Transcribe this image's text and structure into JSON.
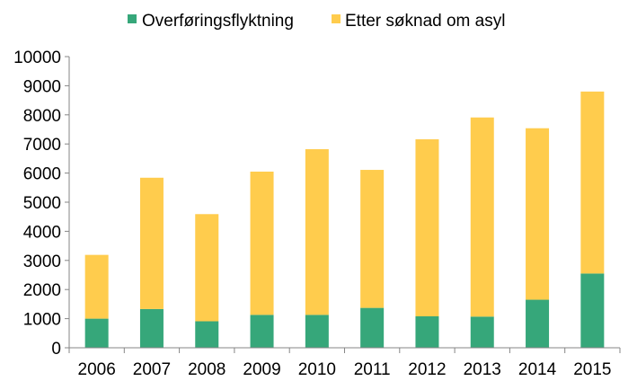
{
  "chart_data": {
    "type": "bar",
    "stacked": true,
    "categories": [
      "2006",
      "2007",
      "2008",
      "2009",
      "2010",
      "2011",
      "2012",
      "2013",
      "2014",
      "2015"
    ],
    "series": [
      {
        "name": "Overføringsflyktning",
        "color": "#36A77A",
        "values": [
          1000,
          1330,
          910,
          1130,
          1130,
          1370,
          1080,
          1070,
          1650,
          2550
        ]
      },
      {
        "name": "Etter søknad om asyl",
        "color": "#FFCC4D",
        "values": [
          2190,
          4510,
          3680,
          4920,
          5690,
          4740,
          6080,
          6840,
          5890,
          6250
        ]
      }
    ],
    "ylim": [
      0,
      10000
    ],
    "yticks": [
      "0",
      "1000",
      "2000",
      "3000",
      "4000",
      "5000",
      "6000",
      "7000",
      "8000",
      "9000",
      "10000"
    ],
    "legend_position": "top",
    "grid": false
  }
}
